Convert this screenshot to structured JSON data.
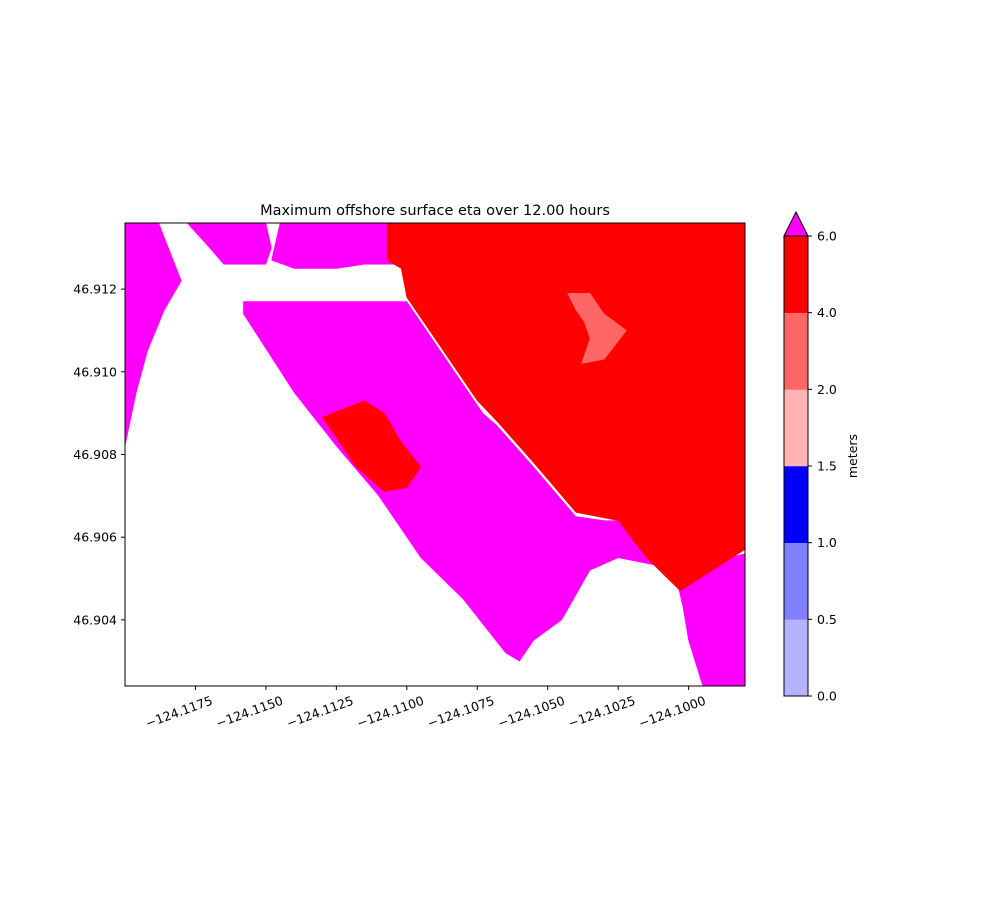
{
  "chart_data": {
    "type": "heatmap",
    "title": "Maximum offshore surface eta over 12.00 hours",
    "xlabel": "",
    "ylabel": "",
    "xlim": [
      -124.12,
      -124.098
    ],
    "ylim": [
      46.9024,
      46.9136
    ],
    "x_ticks": [
      -124.1175,
      -124.115,
      -124.1125,
      -124.11,
      -124.1075,
      -124.105,
      -124.1025,
      -124.1
    ],
    "x_tick_labels": [
      "−124.1175",
      "−124.1150",
      "−124.1125",
      "−124.1100",
      "−124.1075",
      "−124.1050",
      "−124.1025",
      "−124.1000"
    ],
    "y_ticks": [
      46.904,
      46.906,
      46.908,
      46.91,
      46.912
    ],
    "y_tick_labels": [
      "46.904",
      "46.906",
      "46.908",
      "46.910",
      "46.912"
    ],
    "colorbar": {
      "label": "meters",
      "levels": [
        0.0,
        0.5,
        1.0,
        1.5,
        2.0,
        4.0,
        6.0
      ],
      "level_labels": [
        "0.0",
        "0.5",
        "1.0",
        "1.5",
        "2.0",
        "4.0",
        "6.0"
      ],
      "colors": [
        "#b3b3ff",
        "#8080ff",
        "#0000ff",
        "#ffb3b3",
        "#ff6666",
        "#ff0000"
      ],
      "over_color": "#ff00ff",
      "extend": "max"
    },
    "regions": [
      {
        "level": "over",
        "color": "#ff00ff",
        "polygon": [
          [
            -124.12,
            46.9136
          ],
          [
            -124.1188,
            46.9136
          ],
          [
            -124.118,
            46.9122
          ],
          [
            -124.1186,
            46.9115
          ],
          [
            -124.1192,
            46.9105
          ],
          [
            -124.1196,
            46.9095
          ],
          [
            -124.12,
            46.9082
          ]
        ]
      },
      {
        "level": "over",
        "color": "#ff00ff",
        "polygon": [
          [
            -124.1178,
            46.9136
          ],
          [
            -124.115,
            46.9136
          ],
          [
            -124.1148,
            46.913
          ],
          [
            -124.115,
            46.9126
          ],
          [
            -124.1165,
            46.9126
          ],
          [
            -124.117,
            46.913
          ]
        ]
      },
      {
        "level": "over",
        "color": "#ff00ff",
        "polygon": [
          [
            -124.1145,
            46.9136
          ],
          [
            -124.1105,
            46.9136
          ],
          [
            -124.1105,
            46.9128
          ],
          [
            -124.11,
            46.9126
          ],
          [
            -124.1115,
            46.9126
          ],
          [
            -124.1125,
            46.9125
          ],
          [
            -124.114,
            46.9125
          ],
          [
            -124.1148,
            46.9127
          ]
        ]
      },
      {
        "level": "over",
        "color": "#ff00ff",
        "polygon": [
          [
            -124.1158,
            46.9117
          ],
          [
            -124.11,
            46.9117
          ],
          [
            -124.1085,
            46.9102
          ],
          [
            -124.1073,
            46.909
          ],
          [
            -124.1068,
            46.9087
          ],
          [
            -124.1055,
            46.9077
          ],
          [
            -124.104,
            46.9065
          ],
          [
            -124.103,
            46.9064
          ],
          [
            -124.1022,
            46.9064
          ],
          [
            -124.1015,
            46.9058
          ],
          [
            -124.101,
            46.9053
          ],
          [
            -124.1025,
            46.9055
          ],
          [
            -124.1035,
            46.9052
          ],
          [
            -124.1045,
            46.904
          ],
          [
            -124.1055,
            46.9035
          ],
          [
            -124.106,
            46.903
          ],
          [
            -124.1065,
            46.9032
          ],
          [
            -124.108,
            46.9045
          ],
          [
            -124.1095,
            46.9055
          ],
          [
            -124.111,
            46.907
          ],
          [
            -124.1125,
            46.9082
          ],
          [
            -124.114,
            46.9095
          ],
          [
            -124.1158,
            46.9114
          ]
        ]
      },
      {
        "level": "over",
        "color": "#ff00ff",
        "polygon": [
          [
            -124.1005,
            46.9052
          ],
          [
            -124.098,
            46.9056
          ],
          [
            -124.098,
            46.9024
          ],
          [
            -124.0995,
            46.9024
          ],
          [
            -124.1,
            46.9035
          ],
          [
            -124.1002,
            46.9043
          ]
        ]
      },
      {
        "level": "4.0-6.0",
        "color": "#ff0000",
        "polygon": [
          [
            -124.1107,
            46.9136
          ],
          [
            -124.098,
            46.9136
          ],
          [
            -124.098,
            46.9057
          ],
          [
            -124.1003,
            46.9047
          ],
          [
            -124.1015,
            46.9055
          ],
          [
            -124.1025,
            46.9064
          ],
          [
            -124.104,
            46.9066
          ],
          [
            -124.1055,
            46.9078
          ],
          [
            -124.1068,
            46.9088
          ],
          [
            -124.1075,
            46.9093
          ],
          [
            -124.1085,
            46.9103
          ],
          [
            -124.11,
            46.9118
          ],
          [
            -124.1102,
            46.9125
          ],
          [
            -124.1107,
            46.9127
          ]
        ]
      },
      {
        "level": "4.0-6.0",
        "color": "#ff0000",
        "polygon": [
          [
            -124.113,
            46.9089
          ],
          [
            -124.1115,
            46.9093
          ],
          [
            -124.1108,
            46.909
          ],
          [
            -124.1102,
            46.9083
          ],
          [
            -124.1095,
            46.9077
          ],
          [
            -124.11,
            46.9072
          ],
          [
            -124.1108,
            46.9071
          ],
          [
            -124.1118,
            46.9077
          ]
        ]
      },
      {
        "level": "2.0-4.0",
        "color": "#ff6666",
        "polygon": [
          [
            -124.1043,
            46.9119
          ],
          [
            -124.1035,
            46.9119
          ],
          [
            -124.103,
            46.9114
          ],
          [
            -124.1022,
            46.911
          ],
          [
            -124.103,
            46.9103
          ],
          [
            -124.1038,
            46.9102
          ],
          [
            -124.1035,
            46.9108
          ],
          [
            -124.1037,
            46.9112
          ],
          [
            -124.104,
            46.9115
          ]
        ]
      }
    ]
  }
}
